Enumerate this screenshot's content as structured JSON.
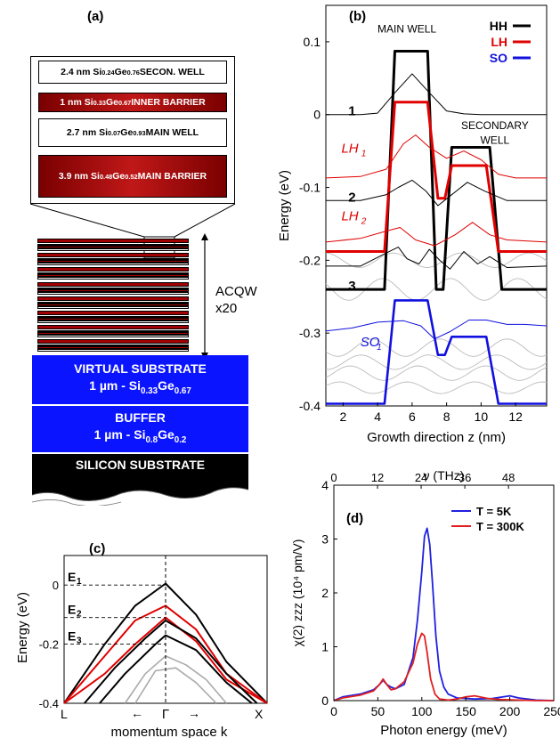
{
  "panel_a": {
    "label": "(a)",
    "layers": [
      {
        "text_a": "2.4 nm Si",
        "s1": "0.24",
        "text_b": "Ge",
        "s2": "0.76",
        "text_c": " SECON. WELL"
      },
      {
        "text_a": "1 nm  Si",
        "s1": "0.33",
        "text_b": "Ge",
        "s2": "0.67",
        "text_c": " INNER BARRIER"
      },
      {
        "text_a": "2.7 nm Si",
        "s1": "0.07",
        "text_b": "Ge",
        "s2": "0.93",
        "text_c": "  MAIN WELL"
      },
      {
        "text_a": "3.9 nm Si",
        "s1": "0.48",
        "text_b": "Ge",
        "s2": "0.52",
        "text_c": " MAIN BARRIER"
      }
    ],
    "stack_label_1": "ACQW",
    "stack_label_2": "x20",
    "virtual_substrate": {
      "line1": "VIRTUAL SUBSTRATE",
      "line2_a": "1 µm - Si",
      "s1": "0.33",
      "line2_b": "Ge",
      "s2": "0.67"
    },
    "buffer": {
      "line1": "BUFFER",
      "line2_a": "1 µm - Si",
      "s1": "0.8",
      "line2_b": "Ge",
      "s2": "0.2"
    },
    "silicon": "SILICON SUBSTRATE",
    "colors": {
      "substrate_blue": "#0a14ff",
      "barrier_red": "#a00000",
      "silicon": "#000000"
    }
  },
  "chart_data": [
    {
      "panel": "(b)",
      "type": "line",
      "xlabel": "Growth direction z (nm)",
      "ylabel": "Energy (eV)",
      "xlim": [
        1,
        13.8
      ],
      "ylim": [
        -0.4,
        0.15
      ],
      "xticks": [
        2,
        4,
        6,
        8,
        10,
        12
      ],
      "yticks": [
        0.1,
        0,
        -0.1,
        -0.2,
        -0.3,
        -0.4
      ],
      "ytick_labels": [
        "0.1",
        "0",
        "-0.1",
        "-0.2",
        "-0.3",
        "-0.4"
      ],
      "legend": {
        "position": "top-right",
        "entries": [
          {
            "name": "HH",
            "color": "#000000"
          },
          {
            "name": "LH",
            "color": "#e00000"
          },
          {
            "name": "SO",
            "color": "#1010e0"
          }
        ]
      },
      "annotations": [
        "MAIN WELL",
        "SECONDARY",
        "WELL",
        "1",
        "2",
        "3",
        "LH",
        "1",
        "LH",
        "2",
        "SO",
        "1"
      ],
      "series": [
        {
          "name": "HH",
          "color": "#000000",
          "x": [
            1,
            4.4,
            5,
            6.9,
            7.4,
            7.8,
            8.3,
            9.2,
            10.5,
            11.2,
            13.8
          ],
          "y": [
            -0.24,
            -0.24,
            0.087,
            0.087,
            -0.24,
            -0.24,
            -0.045,
            -0.045,
            -0.045,
            -0.24,
            -0.24
          ]
        },
        {
          "name": "LH",
          "color": "#e00000",
          "x": [
            1,
            4.4,
            5,
            6.9,
            7.5,
            7.9,
            8.3,
            9.8,
            10.3,
            11.0,
            13.8
          ],
          "y": [
            -0.188,
            -0.188,
            0.017,
            0.017,
            -0.115,
            -0.115,
            -0.07,
            -0.07,
            -0.07,
            -0.188,
            -0.188
          ]
        },
        {
          "name": "SO",
          "color": "#1010e0",
          "x": [
            1,
            4.4,
            5,
            6.9,
            7.5,
            7.9,
            8.3,
            9.8,
            10.3,
            11.0,
            13.8
          ],
          "y": [
            -0.397,
            -0.397,
            -0.255,
            -0.255,
            -0.33,
            -0.33,
            -0.305,
            -0.305,
            -0.305,
            -0.397,
            -0.397
          ]
        },
        {
          "name": "HH1",
          "color": "#000000",
          "x": [
            1,
            2,
            3,
            4,
            5,
            6,
            7,
            8,
            9,
            10,
            11,
            12,
            13,
            13.8
          ],
          "y": [
            0,
            0,
            0,
            0.002,
            0.03,
            0.056,
            0.03,
            0.005,
            0.001,
            0,
            0,
            0,
            0,
            0
          ]
        },
        {
          "name": "HH2",
          "color": "#000000",
          "x": [
            1,
            3,
            4.5,
            5.2,
            6,
            6.8,
            7.5,
            8.3,
            9.2,
            10.2,
            11.5,
            13.8
          ],
          "y": [
            -0.118,
            -0.118,
            -0.11,
            -0.1,
            -0.09,
            -0.105,
            -0.125,
            -0.11,
            -0.093,
            -0.105,
            -0.118,
            -0.118
          ]
        },
        {
          "name": "HH3",
          "color": "#000000",
          "x": [
            1,
            3,
            4.5,
            5.2,
            5.7,
            6.4,
            7.0,
            7.6,
            8.2,
            9.0,
            9.8,
            10.5,
            11.5,
            13.8
          ],
          "y": [
            -0.208,
            -0.208,
            -0.19,
            -0.182,
            -0.198,
            -0.205,
            -0.185,
            -0.2,
            -0.212,
            -0.188,
            -0.205,
            -0.195,
            -0.21,
            -0.208
          ]
        },
        {
          "name": "LH1",
          "color": "#e00000",
          "x": [
            1,
            3,
            4.5,
            5.5,
            6.2,
            7,
            8,
            9,
            10,
            11,
            12,
            13.8
          ],
          "y": [
            -0.087,
            -0.085,
            -0.075,
            -0.04,
            -0.028,
            -0.045,
            -0.06,
            -0.05,
            -0.062,
            -0.082,
            -0.087,
            -0.087
          ]
        },
        {
          "name": "LH2",
          "color": "#e00000",
          "x": [
            1,
            3,
            4.5,
            5.3,
            6.2,
            7.3,
            8.5,
            9.5,
            10.5,
            11.5,
            13.8
          ],
          "y": [
            -0.175,
            -0.17,
            -0.16,
            -0.155,
            -0.172,
            -0.18,
            -0.165,
            -0.148,
            -0.165,
            -0.172,
            -0.175
          ]
        },
        {
          "name": "SO1",
          "color": "#1010e0",
          "x": [
            1,
            2.5,
            4,
            5.5,
            6.5,
            7.3,
            8.2,
            9.3,
            10.3,
            11.5,
            12.5,
            13.8
          ],
          "y": [
            -0.297,
            -0.293,
            -0.285,
            -0.283,
            -0.29,
            -0.308,
            -0.298,
            -0.282,
            -0.282,
            -0.288,
            -0.288,
            -0.29
          ]
        }
      ]
    },
    {
      "panel": "(c)",
      "type": "line",
      "xlabel": "momentum space k",
      "ylabel": "Energy (eV)",
      "xlim": [
        -1,
        1
      ],
      "ylim": [
        -0.4,
        0.1
      ],
      "yticks": [
        0,
        -0.2,
        -0.4
      ],
      "ytick_labels": [
        "0",
        "-0.2",
        "-0.4"
      ],
      "xtick_labels": [
        "L",
        "Γ",
        "X"
      ],
      "arrow_labels": [
        "←",
        "→"
      ],
      "levels": [
        {
          "name": "E",
          "sub": "1",
          "y": 0
        },
        {
          "name": "E",
          "sub": "2",
          "y": -0.11
        },
        {
          "name": "E",
          "sub": "3",
          "y": -0.2
        }
      ],
      "series": [
        {
          "name": "",
          "color": "#000000",
          "x": [
            -1,
            -0.6,
            -0.3,
            0,
            0.3,
            0.6,
            1
          ],
          "y": [
            -0.4,
            -0.2,
            -0.07,
            0.005,
            -0.1,
            -0.26,
            -0.4
          ]
        },
        {
          "name": "",
          "color": "#e00000",
          "x": [
            -1,
            -0.6,
            -0.3,
            0,
            0.3,
            0.6,
            1
          ],
          "y": [
            -0.4,
            -0.24,
            -0.12,
            -0.07,
            -0.15,
            -0.3,
            -0.4
          ]
        },
        {
          "name": "",
          "color": "#e00000",
          "x": [
            -1,
            -0.6,
            -0.3,
            0,
            0.3,
            0.6,
            1
          ],
          "y": [
            -0.4,
            -0.3,
            -0.2,
            -0.11,
            -0.19,
            -0.32,
            -0.4
          ]
        },
        {
          "name": "",
          "color": "#000000",
          "x": [
            -0.8,
            -0.5,
            -0.2,
            0,
            0.3,
            0.6,
            0.9
          ],
          "y": [
            -0.4,
            -0.28,
            -0.18,
            -0.12,
            -0.18,
            -0.3,
            -0.4
          ]
        },
        {
          "name": "",
          "color": "#000000",
          "x": [
            -0.65,
            -0.4,
            -0.1,
            0,
            0.3,
            0.6,
            0.85
          ],
          "y": [
            -0.4,
            -0.3,
            -0.2,
            -0.17,
            -0.22,
            -0.33,
            -0.4
          ]
        },
        {
          "name": "",
          "color": "#aaaaaa",
          "x": [
            -0.4,
            -0.2,
            0,
            0.2,
            0.4,
            0.6
          ],
          "y": [
            -0.4,
            -0.3,
            -0.24,
            -0.27,
            -0.32,
            -0.4
          ]
        },
        {
          "name": "",
          "color": "#aaaaaa",
          "x": [
            -0.3,
            -0.1,
            0.1,
            0.3,
            0.5
          ],
          "y": [
            -0.4,
            -0.29,
            -0.28,
            -0.33,
            -0.4
          ]
        }
      ]
    },
    {
      "panel": "(d)",
      "type": "line",
      "xlabel": "Photon energy (meV)",
      "ylabel": "χ(2) zzz (10⁴ pm/V)",
      "top_xlabel": "ν (THz)",
      "xlim": [
        0,
        250
      ],
      "ylim": [
        0,
        4
      ],
      "xticks": [
        0,
        50,
        100,
        150,
        200,
        250
      ],
      "yticks": [
        0,
        1,
        2,
        3,
        4
      ],
      "top_xticks": [
        0,
        12,
        24,
        36,
        48
      ],
      "legend": {
        "position": "top-right",
        "entries": [
          {
            "name": "T = 5K",
            "color": "#2020e0"
          },
          {
            "name": "T = 300K",
            "color": "#e02020"
          }
        ]
      },
      "series": [
        {
          "name": "T = 5K",
          "color": "#2020e0",
          "x": [
            0,
            10,
            30,
            45,
            52,
            56,
            60,
            65,
            70,
            80,
            90,
            95,
            100,
            103,
            106,
            109,
            112,
            116,
            120,
            125,
            130,
            140,
            160,
            180,
            200,
            210,
            230,
            250
          ],
          "y": [
            0,
            0.07,
            0.12,
            0.2,
            0.3,
            0.38,
            0.3,
            0.25,
            0.22,
            0.3,
            0.8,
            1.5,
            2.4,
            3.05,
            3.2,
            2.9,
            2.2,
            1.2,
            0.55,
            0.25,
            0.12,
            0.05,
            0.03,
            0.04,
            0.09,
            0.05,
            0.01,
            0
          ]
        },
        {
          "name": "T = 300K",
          "color": "#e02020",
          "x": [
            0,
            10,
            30,
            45,
            52,
            56,
            60,
            65,
            70,
            80,
            90,
            95,
            100,
            103,
            106,
            110,
            115,
            120,
            130,
            140,
            150,
            160,
            175,
            190,
            210,
            230,
            250
          ],
          "y": [
            0,
            0.05,
            0.1,
            0.18,
            0.3,
            0.4,
            0.3,
            0.2,
            0.22,
            0.35,
            0.7,
            1.05,
            1.25,
            1.2,
            0.9,
            0.4,
            0.12,
            0.03,
            0.01,
            0.03,
            0.07,
            0.09,
            0.04,
            0.02,
            0.01,
            0,
            0
          ]
        }
      ]
    }
  ]
}
